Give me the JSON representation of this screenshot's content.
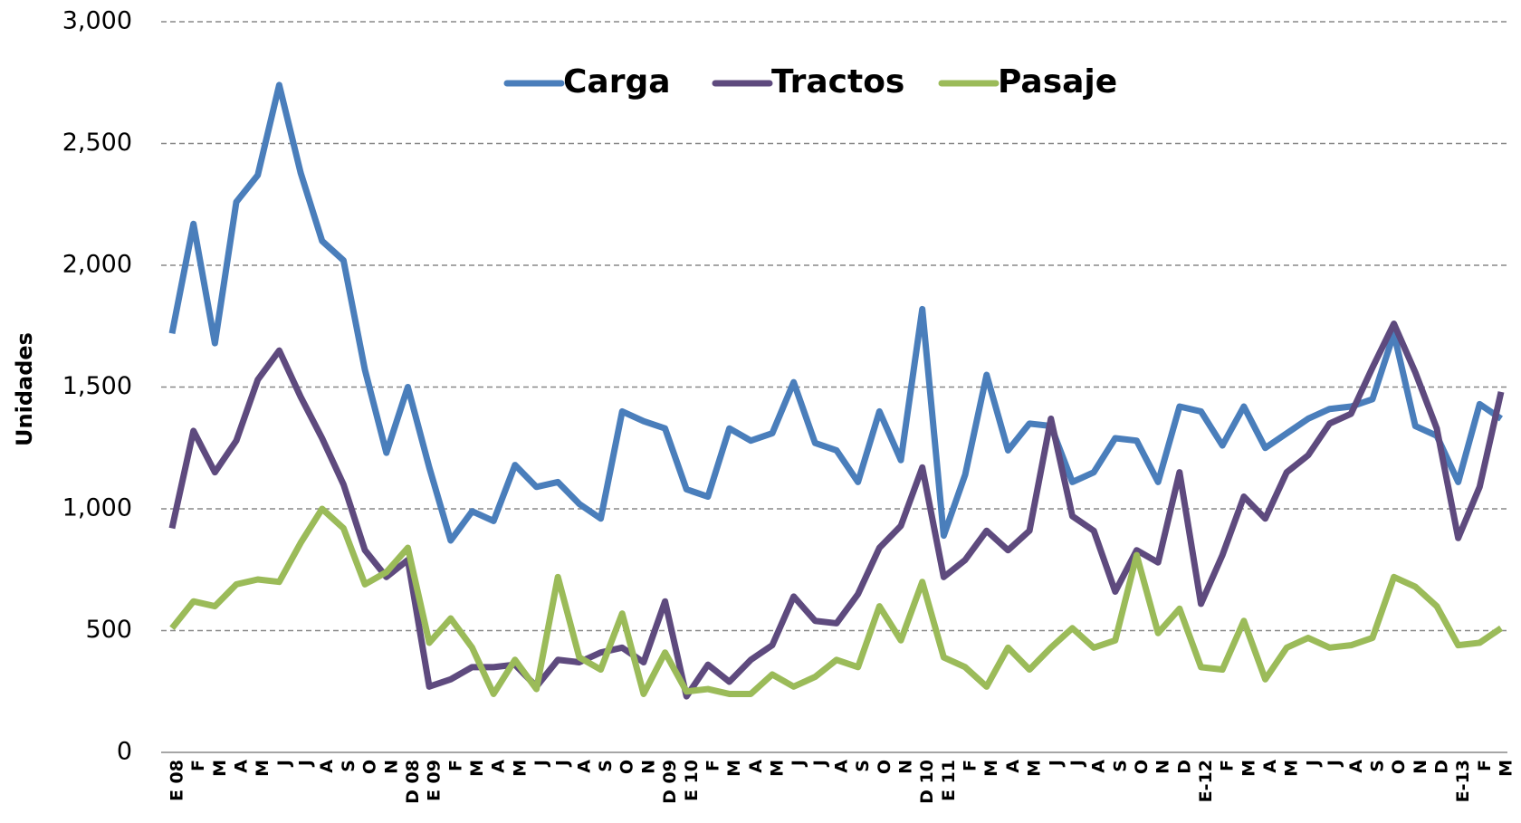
{
  "chart_data": {
    "type": "line",
    "y_label": "Unidades",
    "categories": [
      "E 08",
      "F",
      "M",
      "A",
      "M",
      "J",
      "J",
      "A",
      "S",
      "O",
      "N",
      "D 08",
      "E 09",
      "F",
      "M",
      "A",
      "M",
      "J",
      "J",
      "A",
      "S",
      "O",
      "N",
      "D 09",
      "E 10",
      "F",
      "M",
      "A",
      "M",
      "J",
      "J",
      "A",
      "S",
      "O",
      "N",
      "D 10",
      "E 11",
      "F",
      "M",
      "A",
      "M",
      "J",
      "J",
      "A",
      "S",
      "O",
      "N",
      "D",
      "E-12",
      "F",
      "M",
      "A",
      "M",
      "J",
      "J",
      "A",
      "S",
      "O",
      "N",
      "D",
      "E-13",
      "F",
      "M"
    ],
    "series": [
      {
        "name": "Carga",
        "color": "#4a7ebb",
        "values": [
          1720,
          2170,
          1680,
          2260,
          2370,
          2740,
          2380,
          2100,
          2020,
          1570,
          1230,
          1500,
          1170,
          870,
          990,
          950,
          1180,
          1090,
          1110,
          1020,
          960,
          1400,
          1360,
          1330,
          1080,
          1050,
          1330,
          1280,
          1310,
          1520,
          1270,
          1240,
          1110,
          1400,
          1200,
          1820,
          890,
          1140,
          1550,
          1240,
          1350,
          1340,
          1110,
          1150,
          1290,
          1280,
          1110,
          1420,
          1400,
          1260,
          1420,
          1250,
          1310,
          1370,
          1410,
          1420,
          1450,
          1720,
          1340,
          1300,
          1110,
          1430,
          1370
        ]
      },
      {
        "name": "Tractos",
        "color": "#5e4a7e",
        "values": [
          920,
          1320,
          1150,
          1280,
          1530,
          1650,
          1460,
          1290,
          1100,
          830,
          720,
          790,
          270,
          300,
          350,
          350,
          360,
          270,
          380,
          370,
          410,
          430,
          370,
          620,
          230,
          360,
          290,
          380,
          440,
          640,
          540,
          530,
          650,
          840,
          930,
          1170,
          720,
          790,
          910,
          830,
          910,
          1370,
          970,
          910,
          660,
          830,
          780,
          1150,
          610,
          810,
          1050,
          960,
          1150,
          1220,
          1350,
          1390,
          1580,
          1760,
          1560,
          1330,
          880,
          1090,
          1480
        ]
      },
      {
        "name": "Pasaje",
        "color": "#9bbb59",
        "values": [
          510,
          620,
          600,
          690,
          710,
          700,
          860,
          1000,
          920,
          690,
          740,
          840,
          450,
          550,
          430,
          240,
          380,
          260,
          720,
          390,
          340,
          570,
          240,
          410,
          250,
          260,
          240,
          240,
          320,
          270,
          310,
          380,
          350,
          600,
          460,
          700,
          390,
          350,
          270,
          430,
          340,
          430,
          510,
          430,
          460,
          810,
          490,
          590,
          350,
          340,
          540,
          300,
          430,
          470,
          430,
          440,
          470,
          720,
          680,
          600,
          440,
          450,
          510
        ]
      }
    ],
    "ylim": [
      0,
      3000
    ],
    "yticks": [
      0,
      500,
      {
        "value": 1000,
        "label": "1,000"
      },
      {
        "value": 1500,
        "label": "1,500"
      },
      {
        "value": 2000,
        "label": "2,000"
      },
      {
        "value": 2500,
        "label": "2,500"
      },
      {
        "value": 3000,
        "label": "3,000"
      }
    ],
    "grid": true,
    "legend": "top"
  }
}
